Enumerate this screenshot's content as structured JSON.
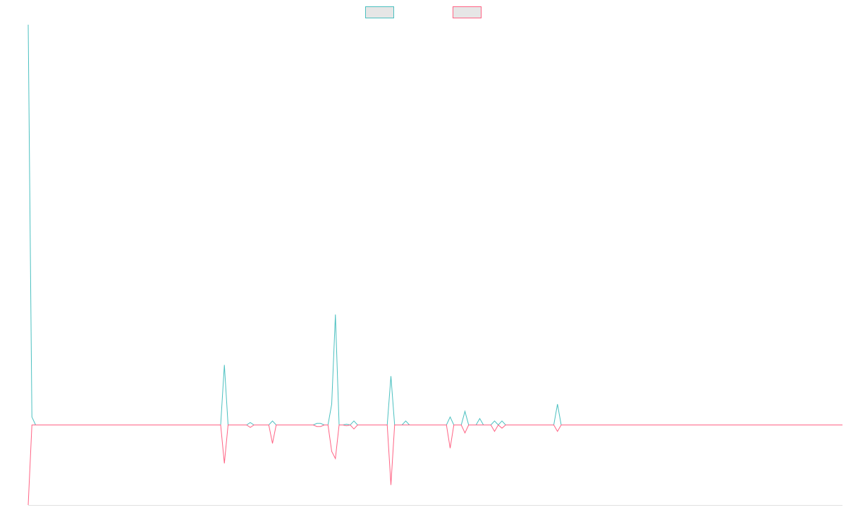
{
  "chart_data": {
    "type": "line",
    "x": [
      0,
      1,
      2,
      52,
      53,
      54,
      59,
      60,
      61,
      65,
      66,
      67,
      77,
      78,
      79,
      80,
      81,
      82,
      83,
      84,
      85,
      86,
      87,
      88,
      89,
      97,
      98,
      99,
      101,
      102,
      103,
      113,
      114,
      115,
      117,
      118,
      119,
      121,
      122,
      123,
      125,
      126,
      127,
      128,
      129,
      142,
      143,
      144,
      220
    ],
    "xlim": [
      0,
      220
    ],
    "ylim": [
      -1,
      5
    ],
    "series": [
      {
        "color": "#4bc0c0",
        "values": [
          5,
          0.1,
          0,
          0,
          0.75,
          0,
          0,
          0.03,
          0,
          0,
          0.05,
          0,
          0,
          0.02,
          0.02,
          0,
          0,
          0.26,
          1.38,
          0,
          0,
          0.01,
          0,
          0.05,
          0,
          0,
          0.61,
          0,
          0,
          0.05,
          0,
          0,
          0.1,
          0,
          0,
          0.17,
          0,
          0,
          0.08,
          0,
          0,
          0.05,
          0,
          0.05,
          0,
          0,
          0.26,
          0,
          0
        ]
      },
      {
        "color": "#ff6384",
        "values": [
          -1,
          0,
          0,
          0,
          -0.48,
          0,
          0,
          -0.03,
          0,
          0,
          -0.23,
          0,
          0,
          -0.02,
          -0.02,
          0,
          0,
          -0.33,
          -0.42,
          0,
          0,
          -0.01,
          0,
          -0.05,
          0,
          0,
          -0.75,
          0,
          0,
          0,
          0,
          0,
          -0.29,
          0,
          0,
          -0.1,
          0,
          0,
          0,
          0,
          0,
          -0.08,
          0,
          -0.04,
          0,
          0,
          -0.08,
          0,
          0
        ]
      }
    ]
  }
}
